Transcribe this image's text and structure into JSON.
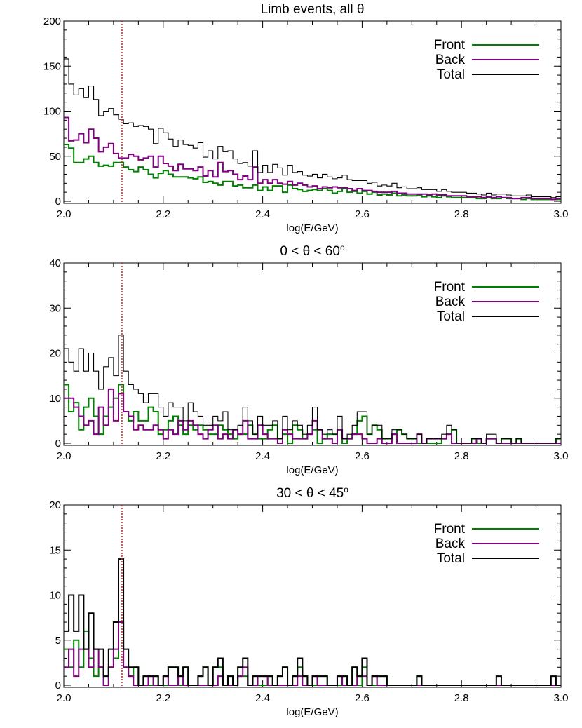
{
  "chart_data": [
    {
      "type": "histogram-step",
      "title": "Limb events, all θ",
      "title_parts": {
        "text": "Limb events, all θ",
        "sup": ""
      },
      "xlabel": "log(E/GeV)",
      "ylabel": "",
      "xlim": [
        2.0,
        3.0
      ],
      "ylim": [
        0,
        200
      ],
      "xticks": [
        "2.0",
        "2.2",
        "2.4",
        "2.6",
        "2.8",
        "3.0"
      ],
      "yticks": [
        "0",
        "50",
        "100",
        "150",
        "200"
      ],
      "reference_line_x": 2.117,
      "legend_position": "top-right",
      "bin_start": 2.0,
      "bin_width": 0.01,
      "series": [
        {
          "name": "Front",
          "color": "#008000",
          "values": [
            63,
            59,
            43,
            43,
            47,
            50,
            43,
            39,
            40,
            39,
            43,
            43,
            38,
            35,
            33,
            38,
            35,
            30,
            26,
            31,
            34,
            30,
            27,
            27,
            27,
            26,
            25,
            27,
            21,
            22,
            20,
            18,
            22,
            22,
            17,
            18,
            15,
            15,
            18,
            12,
            16,
            12,
            17,
            17,
            10,
            18,
            14,
            13,
            11,
            12,
            13,
            12,
            14,
            12,
            9,
            11,
            14,
            10,
            11,
            9,
            11,
            8,
            10,
            7,
            8,
            7,
            9,
            6,
            7,
            6,
            6,
            7,
            5,
            6,
            5,
            4,
            6,
            5,
            4,
            4,
            4,
            4,
            4,
            3,
            3,
            4,
            3,
            3,
            4,
            3,
            3,
            3,
            2,
            3,
            2,
            2,
            2,
            2,
            2,
            2
          ]
        },
        {
          "name": "Back",
          "color": "#800080",
          "values": [
            93,
            67,
            68,
            75,
            65,
            80,
            70,
            55,
            60,
            64,
            53,
            48,
            48,
            52,
            50,
            46,
            48,
            50,
            38,
            50,
            42,
            39,
            34,
            41,
            36,
            36,
            34,
            38,
            28,
            34,
            27,
            43,
            33,
            34,
            30,
            24,
            28,
            24,
            38,
            20,
            24,
            20,
            24,
            20,
            19,
            22,
            18,
            20,
            18,
            16,
            17,
            14,
            16,
            15,
            16,
            15,
            15,
            14,
            12,
            14,
            12,
            12,
            11,
            10,
            10,
            10,
            11,
            9,
            9,
            8,
            8,
            8,
            8,
            7,
            8,
            7,
            7,
            6,
            6,
            6,
            6,
            5,
            5,
            5,
            4,
            5,
            4,
            5,
            4,
            4,
            3,
            3,
            4,
            4,
            3,
            3,
            3,
            3,
            2,
            3
          ]
        },
        {
          "name": "Total",
          "color": "#000000",
          "values": [
            158,
            130,
            118,
            125,
            115,
            128,
            113,
            95,
            100,
            103,
            96,
            91,
            86,
            87,
            83,
            84,
            83,
            80,
            64,
            81,
            76,
            69,
            61,
            68,
            63,
            62,
            59,
            65,
            49,
            56,
            47,
            61,
            55,
            56,
            47,
            42,
            43,
            39,
            56,
            32,
            40,
            32,
            41,
            37,
            29,
            40,
            32,
            33,
            29,
            28,
            30,
            26,
            30,
            27,
            25,
            26,
            29,
            24,
            23,
            23,
            23,
            20,
            21,
            17,
            18,
            17,
            20,
            15,
            16,
            14,
            14,
            15,
            13,
            13,
            13,
            11,
            13,
            11,
            10,
            10,
            10,
            9,
            9,
            8,
            7,
            9,
            7,
            8,
            8,
            7,
            6,
            6,
            6,
            7,
            5,
            5,
            5,
            5,
            4,
            5
          ]
        }
      ]
    },
    {
      "type": "histogram-step",
      "title": "0 < θ < 60o",
      "title_parts": {
        "text": "0 < θ < 60",
        "sup": "o"
      },
      "xlabel": "log(E/GeV)",
      "ylabel": "",
      "xlim": [
        2.0,
        3.0
      ],
      "ylim": [
        0,
        40
      ],
      "xticks": [
        "2.0",
        "2.2",
        "2.4",
        "2.6",
        "2.8",
        "3.0"
      ],
      "yticks": [
        "0",
        "10",
        "20",
        "30",
        "40"
      ],
      "reference_line_x": 2.117,
      "legend_position": "top-right",
      "bin_start": 2.0,
      "bin_width": 0.01,
      "series": [
        {
          "name": "Front",
          "color": "#008000",
          "values": [
            13,
            7,
            9,
            3,
            8,
            10,
            6,
            2,
            6,
            8,
            10,
            13,
            7,
            5,
            7,
            5,
            5,
            8,
            7,
            2,
            3,
            5,
            6,
            4,
            2,
            4,
            3,
            4,
            3,
            2,
            2,
            4,
            3,
            2,
            1,
            2,
            2,
            4,
            2,
            1,
            1,
            3,
            4,
            1,
            2,
            0,
            4,
            3,
            1,
            2,
            3,
            0,
            1,
            2,
            2,
            3,
            0,
            1,
            2,
            5,
            6,
            2,
            4,
            3,
            1,
            1,
            2,
            3,
            2,
            1,
            1,
            0,
            0,
            0,
            0,
            0,
            1,
            2,
            3,
            0,
            0,
            0,
            1,
            0,
            0,
            1,
            1,
            0,
            1,
            1,
            0,
            1,
            0,
            0,
            0,
            0,
            0,
            0,
            0,
            1
          ]
        },
        {
          "name": "Back",
          "color": "#800080",
          "values": [
            10,
            10,
            8,
            6,
            4,
            5,
            2,
            8,
            4,
            12,
            5,
            11,
            7,
            6,
            3,
            4,
            3,
            3,
            4,
            3,
            1,
            3,
            2,
            5,
            3,
            5,
            4,
            2,
            1,
            3,
            4,
            1,
            2,
            1,
            3,
            2,
            5,
            1,
            1,
            4,
            2,
            1,
            1,
            0,
            3,
            2,
            1,
            1,
            1,
            2,
            5,
            3,
            1,
            1,
            0,
            3,
            1,
            1,
            2,
            2,
            1,
            0,
            0,
            1,
            0,
            0,
            2,
            0,
            0,
            0,
            0,
            2,
            0,
            1,
            1,
            1,
            1,
            2,
            0,
            0,
            0,
            0,
            0,
            1,
            0,
            1,
            1,
            0,
            0,
            0,
            0,
            0,
            0,
            0,
            0,
            0,
            0,
            0,
            0,
            0
          ]
        },
        {
          "name": "Total",
          "color": "#000000",
          "values": [
            21,
            18,
            16,
            21,
            16,
            20,
            16,
            12,
            17,
            19,
            15,
            24,
            16,
            13,
            12,
            11,
            9,
            11,
            11,
            8,
            6,
            9,
            8,
            8,
            5,
            9,
            7,
            6,
            4,
            4,
            6,
            5,
            7,
            3,
            3,
            4,
            8,
            5,
            2,
            6,
            4,
            4,
            5,
            1,
            6,
            3,
            5,
            4,
            2,
            4,
            8,
            3,
            2,
            3,
            2,
            6,
            1,
            2,
            4,
            7,
            7,
            2,
            4,
            4,
            1,
            1,
            3,
            3,
            2,
            1,
            1,
            2,
            0,
            1,
            1,
            1,
            2,
            4,
            3,
            0,
            0,
            0,
            1,
            1,
            0,
            2,
            2,
            0,
            1,
            1,
            0,
            1,
            0,
            0,
            0,
            0,
            0,
            0,
            0,
            1
          ]
        }
      ]
    },
    {
      "type": "histogram-step",
      "title": "30 < θ < 45o",
      "title_parts": {
        "text": "30 < θ < 45",
        "sup": "o"
      },
      "xlabel": "log(E/GeV)",
      "ylabel": "",
      "xlim": [
        2.0,
        3.0
      ],
      "ylim": [
        0,
        20
      ],
      "xticks": [
        "2.0",
        "2.2",
        "2.4",
        "2.6",
        "2.8",
        "3.0"
      ],
      "yticks": [
        "0",
        "5",
        "10",
        "15",
        "20"
      ],
      "reference_line_x": 2.117,
      "legend_position": "top-right",
      "bin_start": 2.0,
      "bin_width": 0.01,
      "series": [
        {
          "name": "Front",
          "color": "#008000",
          "values": [
            4,
            2,
            5,
            2,
            6,
            3,
            1,
            2,
            0,
            2,
            3,
            7,
            2,
            1,
            2,
            0,
            1,
            0,
            1,
            0,
            0,
            2,
            2,
            0,
            2,
            0,
            0,
            1,
            2,
            0,
            2,
            2,
            0,
            1,
            0,
            1,
            1,
            0,
            1,
            0,
            0,
            1,
            0,
            1,
            2,
            0,
            1,
            2,
            1,
            0,
            0,
            1,
            1,
            0,
            0,
            0,
            1,
            0,
            2,
            0,
            2,
            0,
            0,
            1,
            1,
            0,
            0,
            0,
            0,
            0,
            0,
            1,
            0,
            0,
            0,
            0,
            0,
            0,
            0,
            0,
            0,
            0,
            0,
            0,
            0,
            0,
            0,
            0,
            0,
            0,
            0,
            0,
            0,
            0,
            0,
            0,
            0,
            0,
            0,
            0
          ]
        },
        {
          "name": "Back",
          "color": "#800080",
          "values": [
            2,
            4,
            1,
            4,
            4,
            2,
            4,
            2,
            0,
            2,
            4,
            7,
            2,
            1,
            0,
            0,
            0,
            1,
            0,
            0,
            1,
            0,
            0,
            1,
            0,
            0,
            0,
            0,
            0,
            0,
            0,
            1,
            0,
            0,
            0,
            1,
            2,
            0,
            0,
            1,
            1,
            0,
            0,
            0,
            0,
            0,
            0,
            1,
            0,
            0,
            1,
            0,
            0,
            0,
            0,
            1,
            0,
            0,
            0,
            1,
            1,
            0,
            1,
            0,
            0,
            0,
            0,
            0,
            0,
            0,
            0,
            0,
            0,
            0,
            0,
            0,
            0,
            0,
            0,
            0,
            0,
            0,
            0,
            0,
            0,
            0,
            0,
            0,
            0,
            0,
            0,
            0,
            0,
            0,
            0,
            0,
            0,
            0,
            0,
            0
          ]
        },
        {
          "name": "Total",
          "color": "#000000",
          "values": [
            6,
            10,
            6,
            10,
            4,
            8,
            4,
            4,
            1,
            4,
            7,
            14,
            4,
            2,
            2,
            0,
            1,
            1,
            1,
            0,
            1,
            2,
            2,
            1,
            2,
            0,
            0,
            1,
            2,
            0,
            2,
            3,
            0,
            1,
            0,
            2,
            3,
            0,
            1,
            1,
            1,
            1,
            0,
            1,
            2,
            0,
            1,
            3,
            1,
            0,
            1,
            1,
            1,
            0,
            0,
            1,
            1,
            0,
            2,
            1,
            3,
            0,
            1,
            1,
            1,
            0,
            0,
            0,
            0,
            0,
            0,
            1,
            0,
            0,
            0,
            0,
            0,
            0,
            0,
            0,
            0,
            0,
            0,
            0,
            0,
            0,
            0,
            1,
            0,
            0,
            0,
            0,
            0,
            0,
            0,
            0,
            0,
            0,
            1,
            0
          ]
        }
      ]
    }
  ]
}
